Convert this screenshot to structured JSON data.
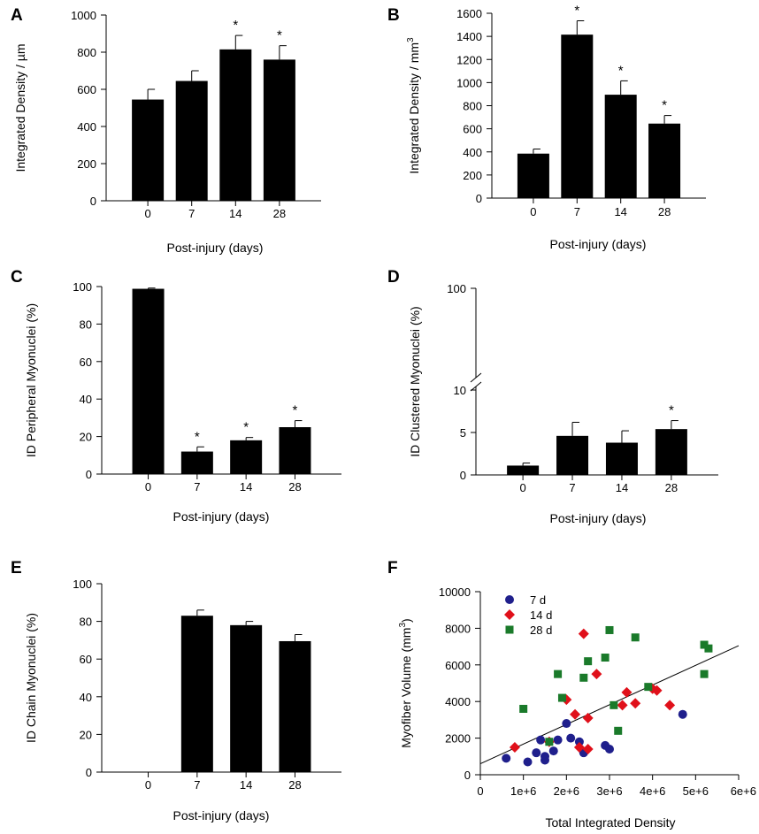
{
  "colors": {
    "bar": "#000000",
    "axis": "#000000",
    "line": "#000000",
    "series_7d": "#1f1f8c",
    "series_14d": "#e0101a",
    "series_28d": "#1a7a2a"
  },
  "chart_data": [
    {
      "panel": "A",
      "type": "bar",
      "categories": [
        "0",
        "7",
        "14",
        "28"
      ],
      "values": [
        545,
        645,
        815,
        760
      ],
      "errors": [
        55,
        55,
        75,
        75
      ],
      "significant": [
        "",
        "",
        "*",
        "*"
      ],
      "ylabel": "Integrated Density / µm",
      "xlabel": "Post-injury (days)",
      "ylim": [
        0,
        1000
      ],
      "yticks": [
        "0",
        "200",
        "400",
        "600",
        "800",
        "1000"
      ]
    },
    {
      "panel": "B",
      "type": "bar",
      "categories": [
        "0",
        "7",
        "14",
        "28"
      ],
      "values": [
        385,
        1415,
        895,
        645
      ],
      "errors": [
        40,
        120,
        120,
        70
      ],
      "significant": [
        "",
        "*",
        "*",
        "*"
      ],
      "ylabel": "Integrated Density / mm",
      "ylabel_sup": "3",
      "xlabel": "Post-injury (days)",
      "ylim": [
        0,
        1600
      ],
      "yticks": [
        "0",
        "200",
        "400",
        "600",
        "800",
        "1000",
        "1200",
        "1400",
        "1600"
      ]
    },
    {
      "panel": "C",
      "type": "bar",
      "categories": [
        "0",
        "7",
        "14",
        "28"
      ],
      "values": [
        98.8,
        12,
        18,
        25
      ],
      "errors": [
        0.4,
        2.5,
        1.5,
        3.5
      ],
      "significant": [
        "",
        "*",
        "*",
        "*"
      ],
      "ylabel": "ID Peripheral Myonuclei (%)",
      "xlabel": "Post-injury (days)",
      "ylim": [
        0,
        100
      ],
      "yticks": [
        "0",
        "20",
        "40",
        "60",
        "80",
        "100"
      ]
    },
    {
      "panel": "D",
      "type": "bar",
      "categories": [
        "0",
        "7",
        "14",
        "28"
      ],
      "values": [
        1.1,
        4.6,
        3.8,
        5.4
      ],
      "errors": [
        0.3,
        1.6,
        1.4,
        1.0
      ],
      "significant": [
        "",
        "",
        "",
        "*"
      ],
      "ylabel": "ID Clustered Myonuclei (%)",
      "xlabel": "Post-injury (days)",
      "ylim": [
        0,
        10
      ],
      "axis_break": true,
      "yticks": [
        "0",
        "5",
        "10",
        "100"
      ]
    },
    {
      "panel": "E",
      "type": "bar",
      "categories": [
        "0",
        "7",
        "14",
        "28"
      ],
      "values": [
        0,
        83,
        78,
        69.5
      ],
      "errors": [
        0,
        3,
        2,
        3.5
      ],
      "significant": [
        "",
        "",
        "",
        ""
      ],
      "ylabel": "ID Chain Myonuclei (%)",
      "xlabel": "Post-injury (days)",
      "ylim": [
        0,
        100
      ],
      "yticks": [
        "0",
        "20",
        "40",
        "60",
        "80",
        "100"
      ]
    },
    {
      "panel": "F",
      "type": "scatter",
      "xlabel": "Total Integrated Density",
      "ylabel": "Myofiber Volume (mm",
      "ylabel_sup": "3",
      "ylabel_close": ")",
      "xlim": [
        0,
        6000000
      ],
      "ylim": [
        0,
        10000
      ],
      "xticks": [
        "0",
        "1e+6",
        "2e+6",
        "3e+6",
        "4e+6",
        "5e+6",
        "6e+6"
      ],
      "yticks": [
        "0",
        "2000",
        "4000",
        "6000",
        "8000",
        "10000"
      ],
      "trendline": {
        "x": [
          0,
          6000000
        ],
        "y": [
          600,
          7050
        ]
      },
      "series": [
        {
          "name": "7 d",
          "marker": "circle",
          "x": [
            600000,
            1100000,
            1300000,
            1400000,
            1500000,
            1500000,
            1700000,
            1800000,
            2000000,
            2100000,
            2300000,
            2400000,
            2900000,
            3000000,
            4700000
          ],
          "y": [
            900,
            700,
            1200,
            1900,
            800,
            1000,
            1300,
            1900,
            2800,
            2000,
            1800,
            1200,
            1600,
            1400,
            3300
          ]
        },
        {
          "name": "14 d",
          "marker": "diamond",
          "x": [
            800000,
            1600000,
            2000000,
            2200000,
            2300000,
            2400000,
            2500000,
            2500000,
            2700000,
            3300000,
            3400000,
            3600000,
            4000000,
            4100000,
            4400000
          ],
          "y": [
            1500,
            1800,
            4100,
            3300,
            1500,
            7700,
            1400,
            3100,
            5500,
            3800,
            4500,
            3900,
            4700,
            4600,
            3800
          ]
        },
        {
          "name": "28 d",
          "marker": "square",
          "x": [
            1000000,
            1600000,
            1800000,
            1900000,
            2400000,
            2500000,
            2900000,
            3000000,
            3100000,
            3200000,
            3600000,
            3900000,
            5200000,
            5200000,
            5300000
          ],
          "y": [
            3600,
            1800,
            5500,
            4200,
            5300,
            6200,
            6400,
            7900,
            3800,
            2400,
            7500,
            4800,
            5500,
            7100,
            6900
          ]
        }
      ]
    }
  ]
}
